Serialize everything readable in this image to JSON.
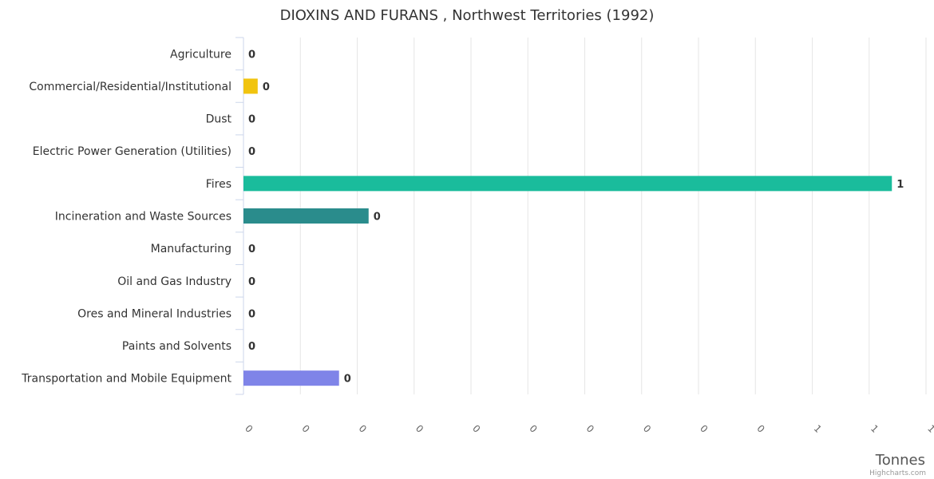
{
  "chart_data": {
    "type": "bar",
    "orientation": "horizontal",
    "title": "DIOXINS AND FURANS , Northwest Territories (1992)",
    "categories": [
      "Agriculture",
      "Commercial/Residential/Institutional",
      "Dust",
      "Electric Power Generation (Utilities)",
      "Fires",
      "Incineration and Waste Sources",
      "Manufacturing",
      "Oil and Gas Industry",
      "Ores and Mineral Industries",
      "Paints and Solvents",
      "Transportation and Mobile Equipment"
    ],
    "values": [
      0,
      0.025,
      0,
      0,
      1.14,
      0.22,
      0,
      0,
      0,
      0,
      0.168
    ],
    "data_labels": [
      "0",
      "0",
      "0",
      "0",
      "1",
      "0",
      "0",
      "0",
      "0",
      "0",
      "0"
    ],
    "colors": [
      "#2f7ed8",
      "#f1c40f",
      "#2f7ed8",
      "#2f7ed8",
      "#1abc9c",
      "#2a8c8c",
      "#2f7ed8",
      "#2f7ed8",
      "#2f7ed8",
      "#2f7ed8",
      "#7f84e8"
    ],
    "x_ticks": [
      0,
      0.1,
      0.2,
      0.3,
      0.4,
      0.5,
      0.6,
      0.7,
      0.8,
      0.9,
      1.0,
      1.1,
      1.2
    ],
    "x_tick_labels": [
      "0",
      "0",
      "0",
      "0",
      "0",
      "0",
      "0",
      "0",
      "0",
      "0",
      "1",
      "1",
      "1"
    ],
    "xlim": [
      0,
      1.2
    ],
    "xlabel": "Tonnes",
    "ylabel": "",
    "grid": true,
    "legend": "none",
    "credits": "Highcharts.com"
  }
}
